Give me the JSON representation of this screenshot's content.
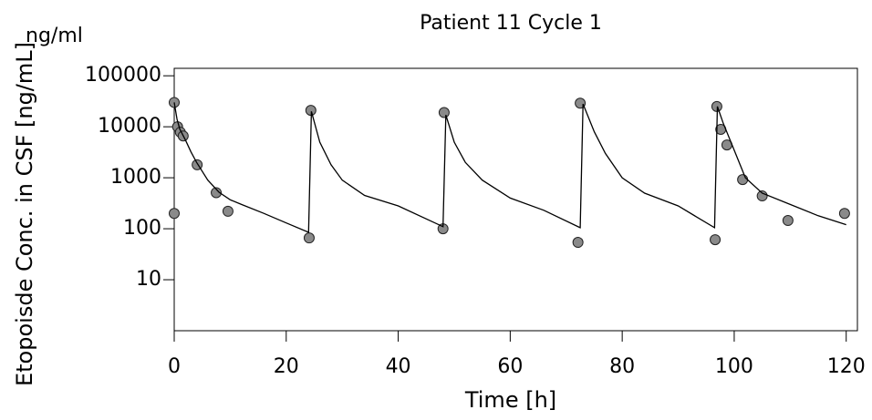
{
  "chart_data": {
    "type": "scatter",
    "title": "Patient 11  Cycle 1",
    "y_unit": "ng/ml",
    "x_label": "Time [h]",
    "y_label": "Etopoisde Conc. in CSF [ng/mL]",
    "log_y": true,
    "xlim": [
      0,
      122
    ],
    "ylim": [
      1,
      140000
    ],
    "xticks": [
      0,
      20,
      40,
      60,
      80,
      100,
      120
    ],
    "yticks": [
      10,
      100,
      1000,
      10000,
      100000
    ],
    "series": [
      {
        "type": "scatter",
        "color": "#8a8a8a",
        "x": [
          0,
          0,
          0.6,
          1.1,
          1.6,
          4.1,
          7.5,
          9.6,
          24.1,
          24.4,
          48.2,
          48,
          72.5,
          72.1,
          96.6,
          96.9,
          97.6,
          98.7,
          101.5,
          105,
          109.6,
          119.7
        ],
        "values": [
          30000,
          200,
          10000,
          7800,
          6600,
          1800,
          510,
          220,
          66,
          21000,
          19000,
          100,
          29000,
          54,
          61,
          25000,
          8900,
          4400,
          920,
          440,
          145,
          200
        ]
      },
      {
        "type": "line",
        "color": "#000000",
        "x": [
          0,
          0.5,
          1,
          2,
          3,
          4,
          6,
          8,
          10,
          12,
          16,
          20,
          24,
          24.5,
          26,
          28,
          30,
          34,
          40,
          48,
          48.5,
          50,
          52,
          55,
          60,
          66,
          72.5,
          73,
          75,
          77,
          80,
          84,
          90,
          96.5,
          97,
          98,
          100,
          102,
          105,
          110,
          115,
          120
        ],
        "values": [
          30000,
          14000,
          9000,
          5500,
          3200,
          2000,
          900,
          520,
          370,
          300,
          200,
          130,
          85,
          20000,
          5000,
          1800,
          900,
          450,
          280,
          110,
          17000,
          5000,
          2000,
          900,
          400,
          230,
          105,
          28000,
          8000,
          3000,
          1000,
          500,
          280,
          105,
          25000,
          12000,
          3500,
          1000,
          500,
          300,
          180,
          120
        ]
      }
    ]
  }
}
